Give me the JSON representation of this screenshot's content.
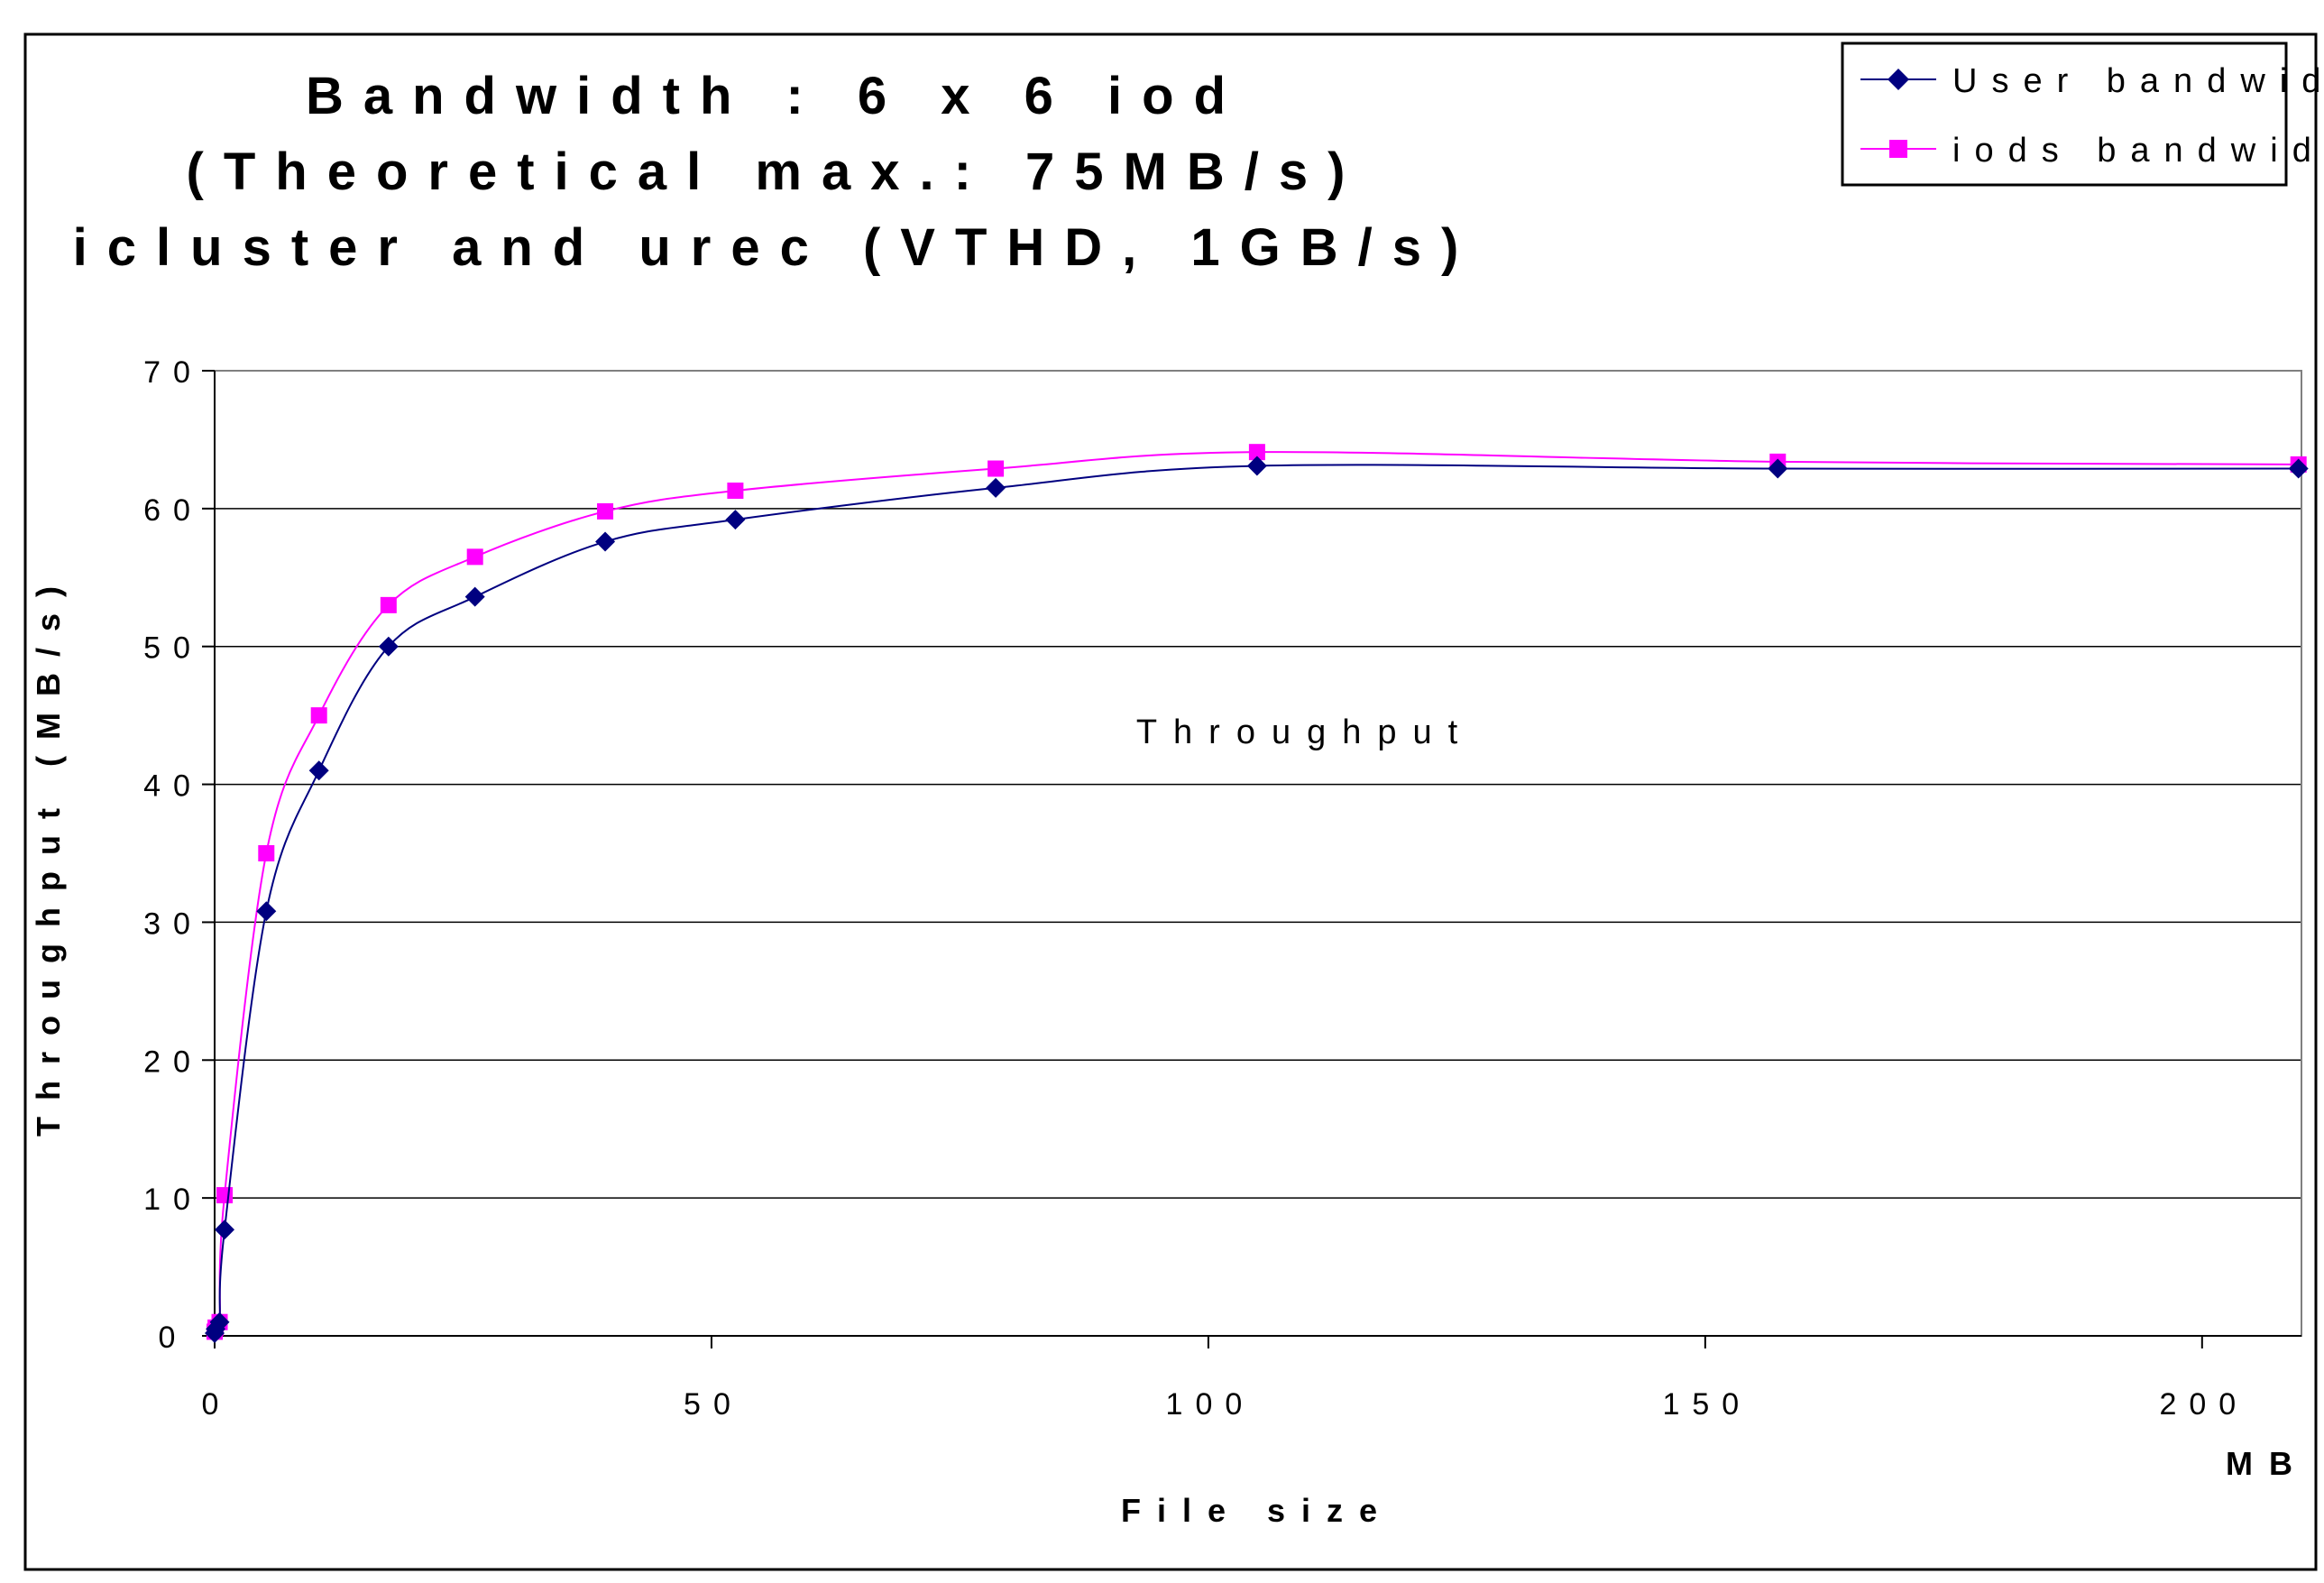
{
  "chart_data": {
    "type": "line",
    "title_lines": [
      "Bandwidth : 6 x 6 iod",
      "(Theoretical max.: 75MB/s)",
      "icluster and urec (VTHD, 1GB/s)"
    ],
    "xlabel": "File size",
    "xunit": "MB",
    "ylabel": "Throughput (MB/s)",
    "annotation": "Throughput",
    "xlim": [
      0,
      210
    ],
    "ylim": [
      0,
      70
    ],
    "xticks": [
      0,
      50,
      100,
      150,
      200
    ],
    "yticks": [
      0,
      10,
      20,
      30,
      40,
      50,
      60,
      70
    ],
    "grid": "horizontal",
    "legend_position": "top-right",
    "series": [
      {
        "name": "User bandwidth",
        "color": "#000080",
        "marker": "diamond",
        "x": [
          0,
          0.1,
          0.5,
          1,
          5.2,
          10.5,
          17.5,
          26.2,
          39.3,
          52.4,
          78.6,
          104.9,
          157.3,
          209.7
        ],
        "y": [
          0.2,
          0.5,
          1,
          7.7,
          30.8,
          41,
          50,
          53.6,
          57.6,
          59.2,
          61.5,
          63.1,
          62.9,
          62.9
        ]
      },
      {
        "name": "iods bandwidth",
        "color": "#ff00ff",
        "marker": "square",
        "x": [
          0,
          0.1,
          0.5,
          1,
          5.2,
          10.5,
          17.5,
          26.2,
          39.3,
          52.4,
          78.6,
          104.9,
          157.3,
          209.7
        ],
        "y": [
          0.3,
          0.6,
          1,
          10.2,
          35,
          45,
          53,
          56.5,
          59.8,
          61.3,
          62.9,
          64.1,
          63.4,
          63.2
        ]
      }
    ]
  }
}
